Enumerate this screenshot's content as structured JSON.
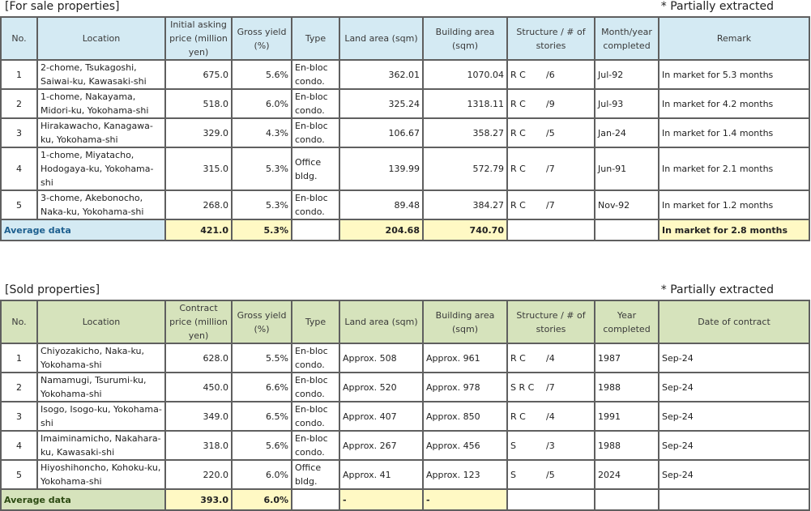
{
  "sale": {
    "title": "[For sale properties]",
    "note": "* Partially extracted",
    "headers": [
      "No.",
      "Location",
      "Initial asking price (million yen)",
      "Gross yield (%)",
      "Type",
      "Land area (sqm)",
      "Building area (sqm)",
      "Structure / # of stories",
      "Month/year completed",
      "Remark"
    ],
    "rows": [
      {
        "no": "1",
        "loc": "2-chome, Tsukagoshi, Saiwai-ku, Kawasaki-shi",
        "price": "675.0",
        "yield": "5.6%",
        "type": "En-bloc condo.",
        "land": "362.01",
        "bldg": "1070.04",
        "struct": "R C",
        "stories": "/6",
        "date": "Jul-92",
        "remark": "In market for 5.3 months"
      },
      {
        "no": "2",
        "loc": "1-chome, Nakayama, Midori-ku, Yokohama-shi",
        "price": "518.0",
        "yield": "6.0%",
        "type": "En-bloc condo.",
        "land": "325.24",
        "bldg": "1318.11",
        "struct": "R C",
        "stories": "/9",
        "date": "Jul-93",
        "remark": "In market for 4.2 months"
      },
      {
        "no": "3",
        "loc": "Hirakawacho, Kanagawa-ku, Yokohama-shi",
        "price": "329.0",
        "yield": "4.3%",
        "type": "En-bloc condo.",
        "land": "106.67",
        "bldg": "358.27",
        "struct": "R C",
        "stories": "/5",
        "date": "Jan-24",
        "remark": "In market for 1.4 months"
      },
      {
        "no": "4",
        "loc": "1-chome, Miyatacho, Hodogaya-ku, Yokohama-shi",
        "price": "315.0",
        "yield": "5.3%",
        "type": "Office bldg.",
        "land": "139.99",
        "bldg": "572.79",
        "struct": "R C",
        "stories": "/7",
        "date": "Jun-91",
        "remark": "In market for 2.1 months"
      },
      {
        "no": "5",
        "loc": "3-chome, Akebonocho, Naka-ku, Yokohama-shi",
        "price": "268.0",
        "yield": "5.3%",
        "type": "En-bloc condo.",
        "land": "89.48",
        "bldg": "384.27",
        "struct": "R C",
        "stories": "/7",
        "date": "Nov-92",
        "remark": "In market for 1.2 months"
      }
    ],
    "avg": {
      "label": "Average data",
      "price": "421.0",
      "yield": "5.3%",
      "land": "204.68",
      "bldg": "740.70",
      "remark": "In market for 2.8 months"
    }
  },
  "sold": {
    "title": "[Sold properties]",
    "note": "* Partially extracted",
    "headers": [
      "No.",
      "Location",
      "Contract price (million yen)",
      "Gross yield (%)",
      "Type",
      "Land area (sqm)",
      "Building area (sqm)",
      "Structure / # of stories",
      "Year completed",
      "Date of contract"
    ],
    "rows": [
      {
        "no": "1",
        "loc": "Chiyozakicho, Naka-ku, Yokohama-shi",
        "price": "628.0",
        "yield": "5.5%",
        "type": "En-bloc condo.",
        "land": "Approx. 508",
        "bldg": "Approx. 961",
        "struct": "R C",
        "stories": "/4",
        "date": "1987",
        "remark": "Sep-24"
      },
      {
        "no": "2",
        "loc": "Namamugi, Tsurumi-ku, Yokohama-shi",
        "price": "450.0",
        "yield": "6.6%",
        "type": "En-bloc condo.",
        "land": "Approx. 520",
        "bldg": "Approx. 978",
        "struct": "S R C",
        "stories": "/7",
        "date": "1988",
        "remark": "Sep-24"
      },
      {
        "no": "3",
        "loc": "Isogo, Isogo-ku, Yokohama-shi",
        "price": "349.0",
        "yield": "6.5%",
        "type": "En-bloc condo.",
        "land": "Approx. 407",
        "bldg": "Approx. 850",
        "struct": "R C",
        "stories": "/4",
        "date": "1991",
        "remark": "Sep-24"
      },
      {
        "no": "4",
        "loc": "Imaiminamicho, Nakahara-ku, Kawasaki-shi",
        "price": "318.0",
        "yield": "5.6%",
        "type": "En-bloc condo.",
        "land": "Approx. 267",
        "bldg": "Approx. 456",
        "struct": "S",
        "stories": "/3",
        "date": "1988",
        "remark": "Sep-24"
      },
      {
        "no": "5",
        "loc": "Hiyoshihoncho, Kohoku-ku, Yokohama-shi",
        "price": "220.0",
        "yield": "6.0%",
        "type": "Office bldg.",
        "land": "Approx. 41",
        "bldg": "Approx. 123",
        "struct": "S",
        "stories": "/5",
        "date": "2024",
        "remark": "Sep-24"
      }
    ],
    "avg": {
      "label": "Average data",
      "price": "393.0",
      "yield": "6.0%",
      "land": "-",
      "bldg": "-",
      "remark": ""
    }
  }
}
